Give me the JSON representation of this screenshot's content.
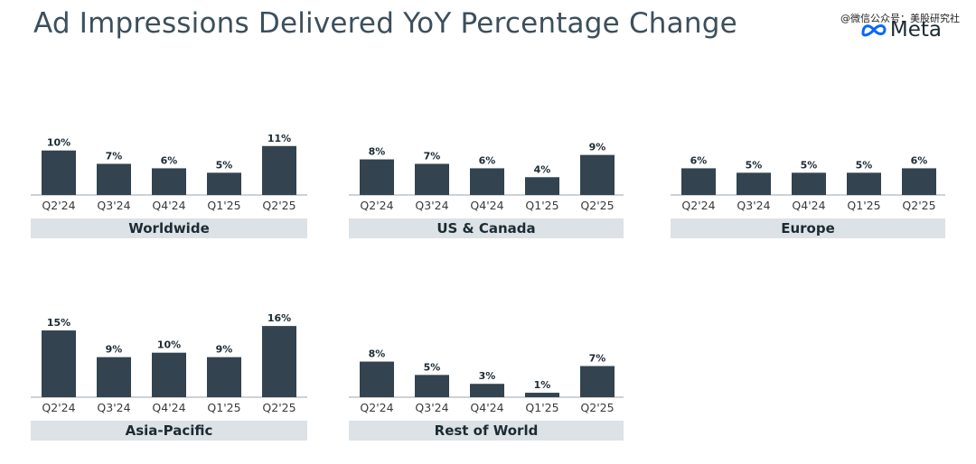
{
  "header": {
    "title": "Ad Impressions Delivered YoY Percentage Change",
    "watermark": "@微信公众号：美股研究社",
    "logo_text": "Meta"
  },
  "colors": {
    "bar": "#33434f",
    "title": "#3c4f5c",
    "region_band": "#dde2e6",
    "logo_blue": "#0866ff"
  },
  "chart_data": [
    {
      "type": "bar",
      "region": "Worldwide",
      "categories": [
        "Q2'24",
        "Q3'24",
        "Q4'24",
        "Q1'25",
        "Q2'25"
      ],
      "values": [
        10,
        7,
        6,
        5,
        11
      ],
      "labels": [
        "10%",
        "7%",
        "6%",
        "5%",
        "11%"
      ]
    },
    {
      "type": "bar",
      "region": "US & Canada",
      "categories": [
        "Q2'24",
        "Q3'24",
        "Q4'24",
        "Q1'25",
        "Q2'25"
      ],
      "values": [
        8,
        7,
        6,
        4,
        9
      ],
      "labels": [
        "8%",
        "7%",
        "6%",
        "4%",
        "9%"
      ]
    },
    {
      "type": "bar",
      "region": "Europe",
      "categories": [
        "Q2'24",
        "Q3'24",
        "Q4'24",
        "Q1'25",
        "Q2'25"
      ],
      "values": [
        6,
        5,
        5,
        5,
        6
      ],
      "labels": [
        "6%",
        "5%",
        "5%",
        "5%",
        "6%"
      ]
    },
    {
      "type": "bar",
      "region": "Asia-Pacific",
      "categories": [
        "Q2'24",
        "Q3'24",
        "Q4'24",
        "Q1'25",
        "Q2'25"
      ],
      "values": [
        15,
        9,
        10,
        9,
        16
      ],
      "labels": [
        "15%",
        "9%",
        "10%",
        "9%",
        "16%"
      ]
    },
    {
      "type": "bar",
      "region": "Rest of World",
      "categories": [
        "Q2'24",
        "Q3'24",
        "Q4'24",
        "Q1'25",
        "Q2'25"
      ],
      "values": [
        8,
        5,
        3,
        1,
        7
      ],
      "labels": [
        "8%",
        "5%",
        "3%",
        "1%",
        "7%"
      ]
    }
  ]
}
